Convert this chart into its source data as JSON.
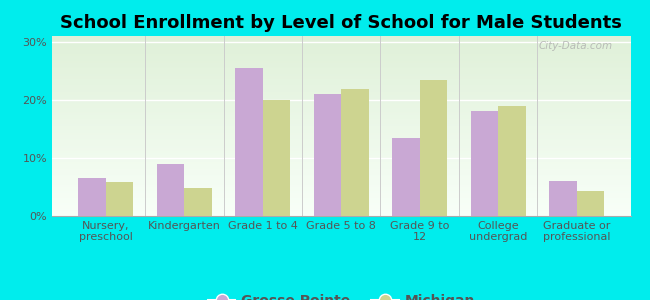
{
  "title": "School Enrollment by Level of School for Male Students",
  "categories": [
    "Nursery,\npreschool",
    "Kindergarten",
    "Grade 1 to 4",
    "Grade 5 to 8",
    "Grade 9 to\n12",
    "College\nundergrad",
    "Graduate or\nprofessional"
  ],
  "grosse_pointe": [
    6.5,
    9.0,
    25.5,
    21.0,
    13.5,
    18.0,
    6.0
  ],
  "michigan": [
    5.8,
    4.8,
    20.0,
    21.8,
    23.5,
    19.0,
    4.3
  ],
  "grosse_pointe_color": "#c9a8d4",
  "michigan_color": "#cdd490",
  "background_color": "#00eded",
  "plot_bg_top": "#dff0d8",
  "plot_bg_bottom": "#f8fff8",
  "ylabel_ticks": [
    "0%",
    "10%",
    "20%",
    "30%"
  ],
  "yticks": [
    0,
    10,
    20,
    30
  ],
  "ylim": [
    0,
    31
  ],
  "bar_width": 0.35,
  "title_fontsize": 13,
  "tick_fontsize": 8,
  "legend_fontsize": 10,
  "watermark": "City-Data.com"
}
